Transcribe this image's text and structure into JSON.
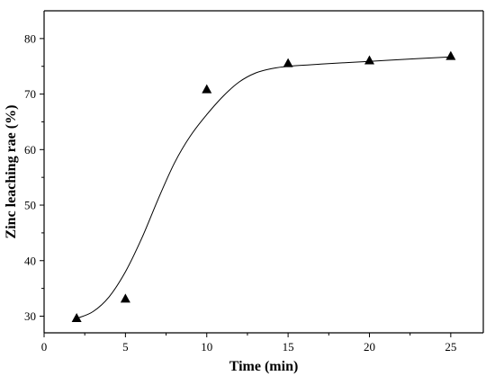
{
  "chart_data": {
    "type": "scatter",
    "title": "",
    "xlabel": "Time (min)",
    "ylabel": "Zinc leaching rae (%)",
    "xlim": [
      0,
      27
    ],
    "ylim": [
      27,
      85
    ],
    "xticks": [
      0,
      5,
      10,
      15,
      20,
      25
    ],
    "yticks": [
      30,
      40,
      50,
      60,
      70,
      80
    ],
    "xtick_labels": [
      "0",
      "5",
      "10",
      "15",
      "20",
      "25"
    ],
    "ytick_labels": [
      "30",
      "40",
      "50",
      "60",
      "70",
      "80"
    ],
    "grid": false,
    "legend": "none",
    "marker": "triangle",
    "color": "#000000",
    "series": [
      {
        "x": [
          2,
          5,
          10,
          15,
          20,
          25
        ],
        "y": [
          29.6,
          33.1,
          70.8,
          75.5,
          76.0,
          76.8
        ]
      }
    ],
    "fit_curve": {
      "type": "sigmoid",
      "x": [
        2,
        3,
        4,
        5,
        6,
        7,
        8,
        9,
        10,
        11,
        12,
        13,
        14,
        15,
        17,
        20,
        23,
        25
      ],
      "y": [
        29.6,
        30.8,
        33.5,
        38.0,
        44.0,
        51.0,
        57.5,
        62.5,
        66.3,
        69.6,
        72.2,
        73.8,
        74.6,
        75.0,
        75.4,
        75.9,
        76.4,
        76.7
      ]
    }
  }
}
